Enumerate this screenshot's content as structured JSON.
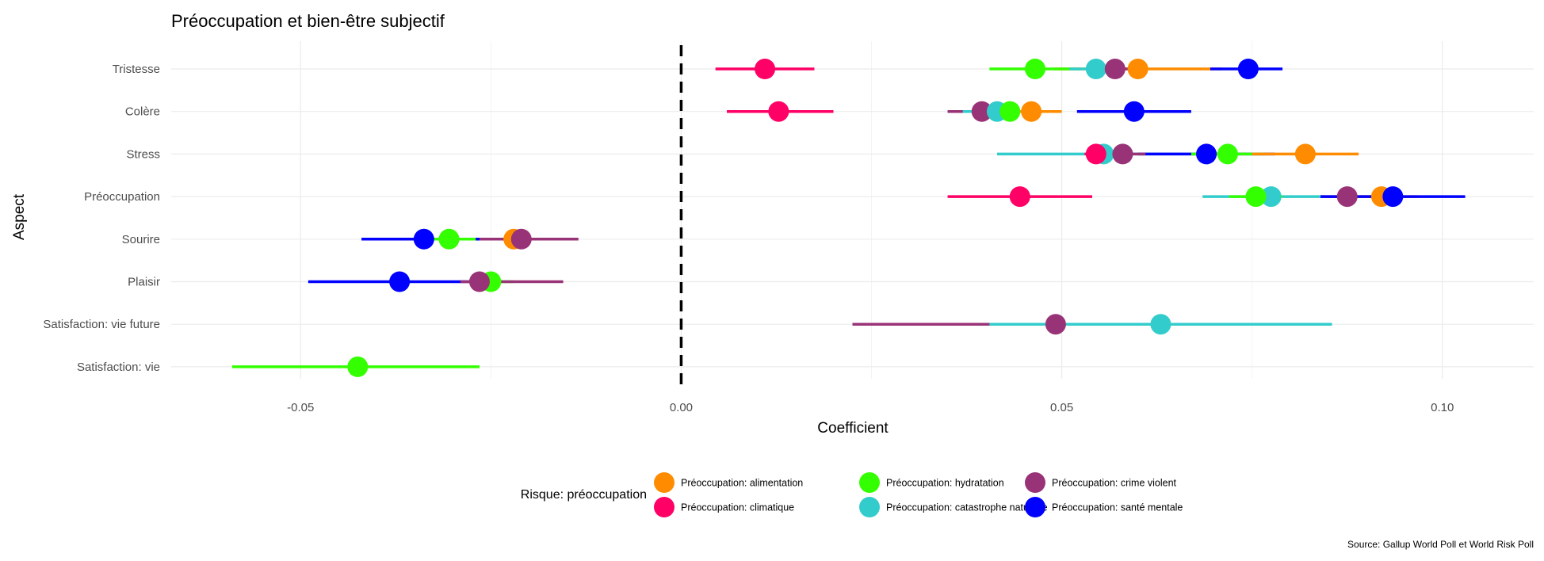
{
  "chart_data": {
    "type": "dot-interval",
    "title": "Préoccupation et bien-être subjectif",
    "xlabel": "Coefficient",
    "ylabel": "Aspect",
    "caption": "Source: Gallup World Poll et World Risk Poll",
    "xlim": [
      -0.067,
      0.112
    ],
    "xticks": [
      -0.05,
      0.0,
      0.05,
      0.1
    ],
    "xtick_labels": [
      "-0.05",
      "0.00",
      "0.05",
      "0.10"
    ],
    "reference_line": 0,
    "categories": [
      "Tristesse",
      "Colère",
      "Stress",
      "Préoccupation",
      "Sourire",
      "Plaisir",
      "Satisfaction: vie future",
      "Satisfaction: vie"
    ],
    "legend_title": "Risque: préoccupation",
    "legend_position": "bottom",
    "series": [
      {
        "name": "Préoccupation: alimentation",
        "color": "#FF8C00",
        "points": [
          {
            "aspect": "Tristesse",
            "est": 0.06,
            "lo": 0.049,
            "hi": 0.071
          },
          {
            "aspect": "Colère",
            "est": 0.046,
            "lo": 0.041,
            "hi": 0.05
          },
          {
            "aspect": "Stress",
            "est": 0.082,
            "lo": 0.075,
            "hi": 0.089
          },
          {
            "aspect": "Préoccupation",
            "est": 0.092,
            "lo": 0.087,
            "hi": 0.097
          },
          {
            "aspect": "Sourire",
            "est": -0.022,
            "lo": -0.025,
            "hi": -0.019
          }
        ]
      },
      {
        "name": "Préoccupation: climatique",
        "color": "#FF0066",
        "points": [
          {
            "aspect": "Tristesse",
            "est": 0.011,
            "lo": 0.0045,
            "hi": 0.0175
          },
          {
            "aspect": "Colère",
            "est": 0.0128,
            "lo": 0.006,
            "hi": 0.02
          },
          {
            "aspect": "Stress",
            "est": 0.0545,
            "lo": 0.053,
            "hi": 0.056
          },
          {
            "aspect": "Préoccupation",
            "est": 0.0445,
            "lo": 0.035,
            "hi": 0.054
          }
        ]
      },
      {
        "name": "Préoccupation: hydratation",
        "color": "#33FF00",
        "points": [
          {
            "aspect": "Tristesse",
            "est": 0.0465,
            "lo": 0.0405,
            "hi": 0.0525
          },
          {
            "aspect": "Colère",
            "est": 0.0432,
            "lo": 0.04,
            "hi": 0.0465
          },
          {
            "aspect": "Stress",
            "est": 0.0718,
            "lo": 0.067,
            "hi": 0.0765
          },
          {
            "aspect": "Préoccupation",
            "est": 0.0755,
            "lo": 0.072,
            "hi": 0.079
          },
          {
            "aspect": "Sourire",
            "est": -0.0305,
            "lo": -0.034,
            "hi": -0.027
          },
          {
            "aspect": "Plaisir",
            "est": -0.025,
            "lo": -0.028,
            "hi": -0.022
          },
          {
            "aspect": "Satisfaction: vie",
            "est": -0.0425,
            "lo": -0.059,
            "hi": -0.0265
          }
        ]
      },
      {
        "name": "Préoccupation: catastrophe naturelle",
        "color": "#33CCCC",
        "points": [
          {
            "aspect": "Tristesse",
            "est": 0.0545,
            "lo": 0.051,
            "hi": 0.058
          },
          {
            "aspect": "Colère",
            "est": 0.0415,
            "lo": 0.037,
            "hi": 0.046
          },
          {
            "aspect": "Stress",
            "est": 0.0555,
            "lo": 0.0415,
            "hi": 0.0695
          },
          {
            "aspect": "Préoccupation",
            "est": 0.0775,
            "lo": 0.0685,
            "hi": 0.0845
          },
          {
            "aspect": "Satisfaction: vie future",
            "est": 0.063,
            "lo": 0.0405,
            "hi": 0.0855
          }
        ]
      },
      {
        "name": "Préoccupation: crime violent",
        "color": "#993377",
        "points": [
          {
            "aspect": "Tristesse",
            "est": 0.057,
            "lo": 0.054,
            "hi": 0.06
          },
          {
            "aspect": "Colère",
            "est": 0.0395,
            "lo": 0.035,
            "hi": 0.044
          },
          {
            "aspect": "Stress",
            "est": 0.058,
            "lo": 0.055,
            "hi": 0.061
          },
          {
            "aspect": "Préoccupation",
            "est": 0.0875,
            "lo": 0.084,
            "hi": 0.091
          },
          {
            "aspect": "Sourire",
            "est": -0.021,
            "lo": -0.0265,
            "hi": -0.0135
          },
          {
            "aspect": "Plaisir",
            "est": -0.0265,
            "lo": -0.029,
            "hi": -0.0155
          },
          {
            "aspect": "Satisfaction: vie future",
            "est": 0.0492,
            "lo": 0.0225,
            "hi": 0.0575
          }
        ]
      },
      {
        "name": "Préoccupation: santé mentale",
        "color": "#0000FF",
        "points": [
          {
            "aspect": "Tristesse",
            "est": 0.0745,
            "lo": 0.0695,
            "hi": 0.079
          },
          {
            "aspect": "Colère",
            "est": 0.0595,
            "lo": 0.052,
            "hi": 0.067
          },
          {
            "aspect": "Stress",
            "est": 0.069,
            "lo": 0.06,
            "hi": 0.078
          },
          {
            "aspect": "Préoccupation",
            "est": 0.0935,
            "lo": 0.084,
            "hi": 0.103
          },
          {
            "aspect": "Sourire",
            "est": -0.0338,
            "lo": -0.042,
            "hi": -0.025
          },
          {
            "aspect": "Plaisir",
            "est": -0.037,
            "lo": -0.049,
            "hi": -0.025
          }
        ]
      }
    ],
    "draw_order": [
      {
        "aspect": "Tristesse",
        "series": [
          1,
          0,
          2,
          3,
          4,
          5
        ]
      },
      {
        "aspect": "Colère",
        "series": [
          1,
          4,
          3,
          2,
          0,
          5
        ]
      },
      {
        "aspect": "Stress",
        "series": [
          3,
          5,
          2,
          0,
          1,
          4
        ]
      },
      {
        "aspect": "Préoccupation",
        "series": [
          1,
          3,
          2,
          4,
          0,
          5
        ]
      },
      {
        "aspect": "Sourire",
        "series": [
          5,
          2,
          0,
          4
        ]
      },
      {
        "aspect": "Plaisir",
        "series": [
          5,
          2,
          4
        ]
      },
      {
        "aspect": "Satisfaction: vie future",
        "series": [
          4,
          3
        ]
      },
      {
        "aspect": "Satisfaction: vie",
        "series": [
          2
        ]
      }
    ]
  }
}
